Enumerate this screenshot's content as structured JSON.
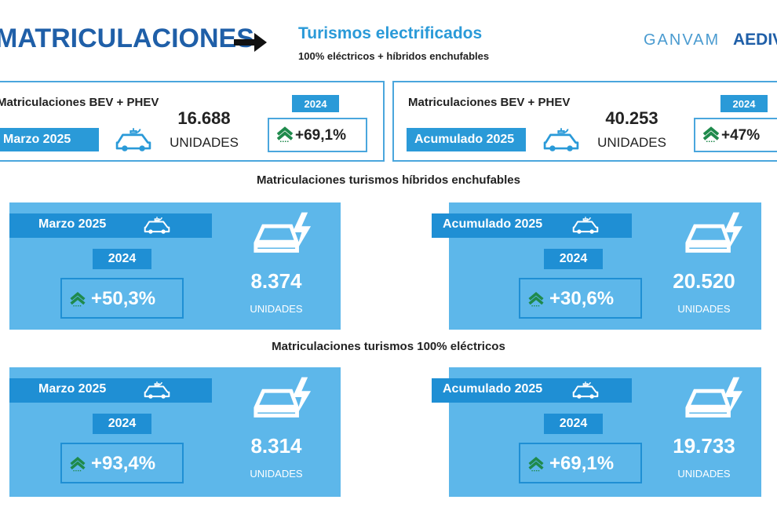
{
  "header": {
    "title": "MATRICULACIONES",
    "topic": "Turismos electrificados",
    "subtitle": "100% eléctricos + híbridos enchufables",
    "logos": [
      "GANVAM",
      "AEDIVE"
    ]
  },
  "summary": [
    {
      "label": "Matriculaciones BEV + PHEV",
      "period": "Marzo 2025",
      "value": "16.688",
      "unit": "UNIDADES",
      "compare_year": "2024",
      "change": "+69,1%"
    },
    {
      "label": "Matriculaciones BEV + PHEV",
      "period": "Acumulado 2025",
      "value": "40.253",
      "unit": "UNIDADES",
      "compare_year": "2024",
      "change": "+47%"
    }
  ],
  "sections": [
    {
      "title": "Matriculaciones turismos híbridos enchufables",
      "panels": [
        {
          "period": "Marzo 2025",
          "compare_year": "2024",
          "change": "+50,3%",
          "value": "8.374",
          "unit": "UNIDADES"
        },
        {
          "period": "Acumulado 2025",
          "compare_year": "2024",
          "change": "+30,6%",
          "value": "20.520",
          "unit": "UNIDADES"
        }
      ]
    },
    {
      "title": "Matriculaciones turismos 100% eléctricos",
      "panels": [
        {
          "period": "Marzo 2025",
          "compare_year": "2024",
          "change": "+93,4%",
          "value": "8.314",
          "unit": "UNIDADES"
        },
        {
          "period": "Acumulado 2025",
          "compare_year": "2024",
          "change": "+69,1%",
          "value": "19.733",
          "unit": "UNIDADES"
        }
      ]
    }
  ]
}
